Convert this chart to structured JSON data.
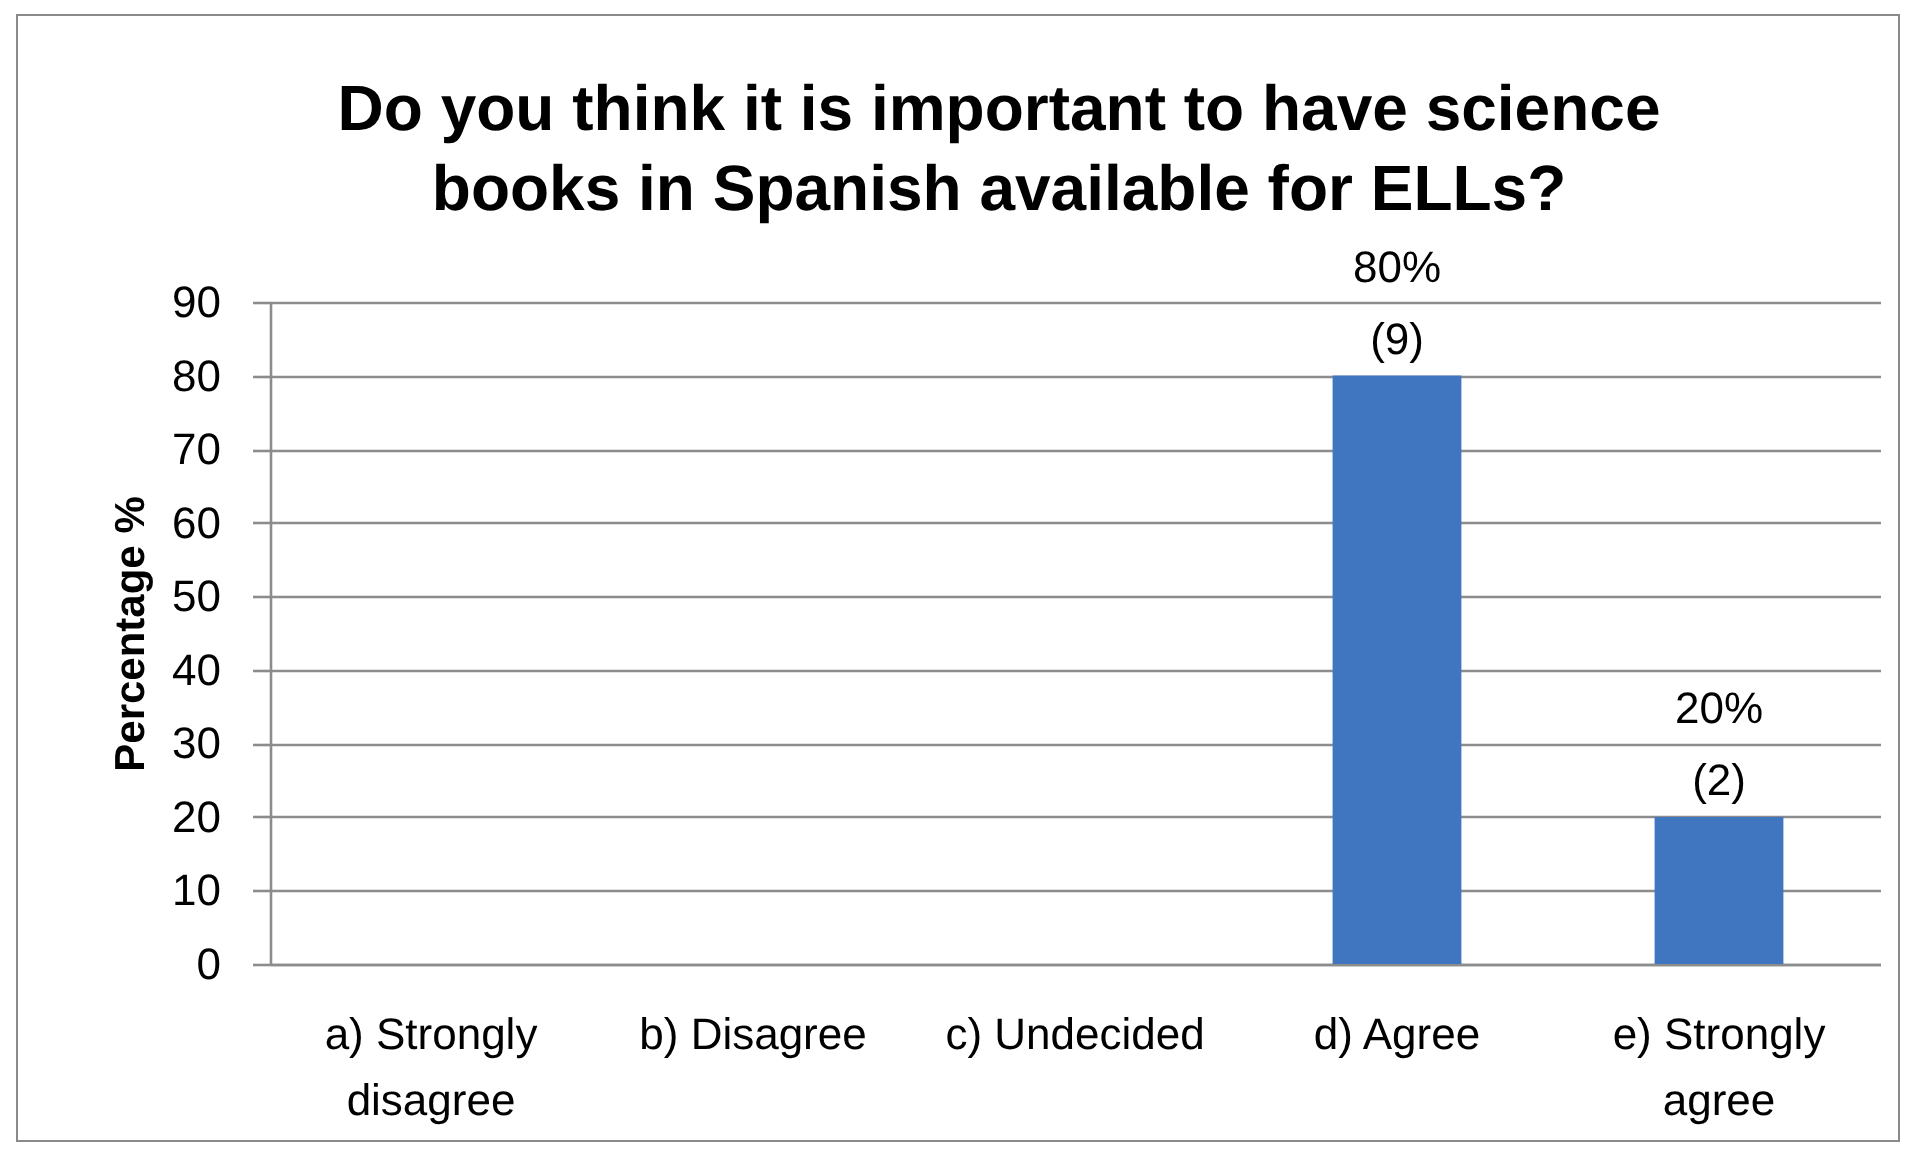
{
  "chart_data": {
    "type": "bar",
    "title": "Do you think it is important to have science books in Spanish available for ELLs?",
    "ylabel": "Percentage %",
    "categories": [
      "a) Strongly disagree",
      "b) Disagree",
      "c) Undecided",
      "d) Agree",
      "e) Strongly agree"
    ],
    "values": [
      0,
      0,
      0,
      80,
      20
    ],
    "value_labels": [
      null,
      null,
      null,
      "80%\n(9)",
      "20%\n(2)"
    ],
    "color": "#4075bf",
    "ylim": [
      0,
      90
    ],
    "yticks": [
      0,
      10,
      20,
      30,
      40,
      50,
      60,
      70,
      80,
      90
    ],
    "grid": "y"
  }
}
